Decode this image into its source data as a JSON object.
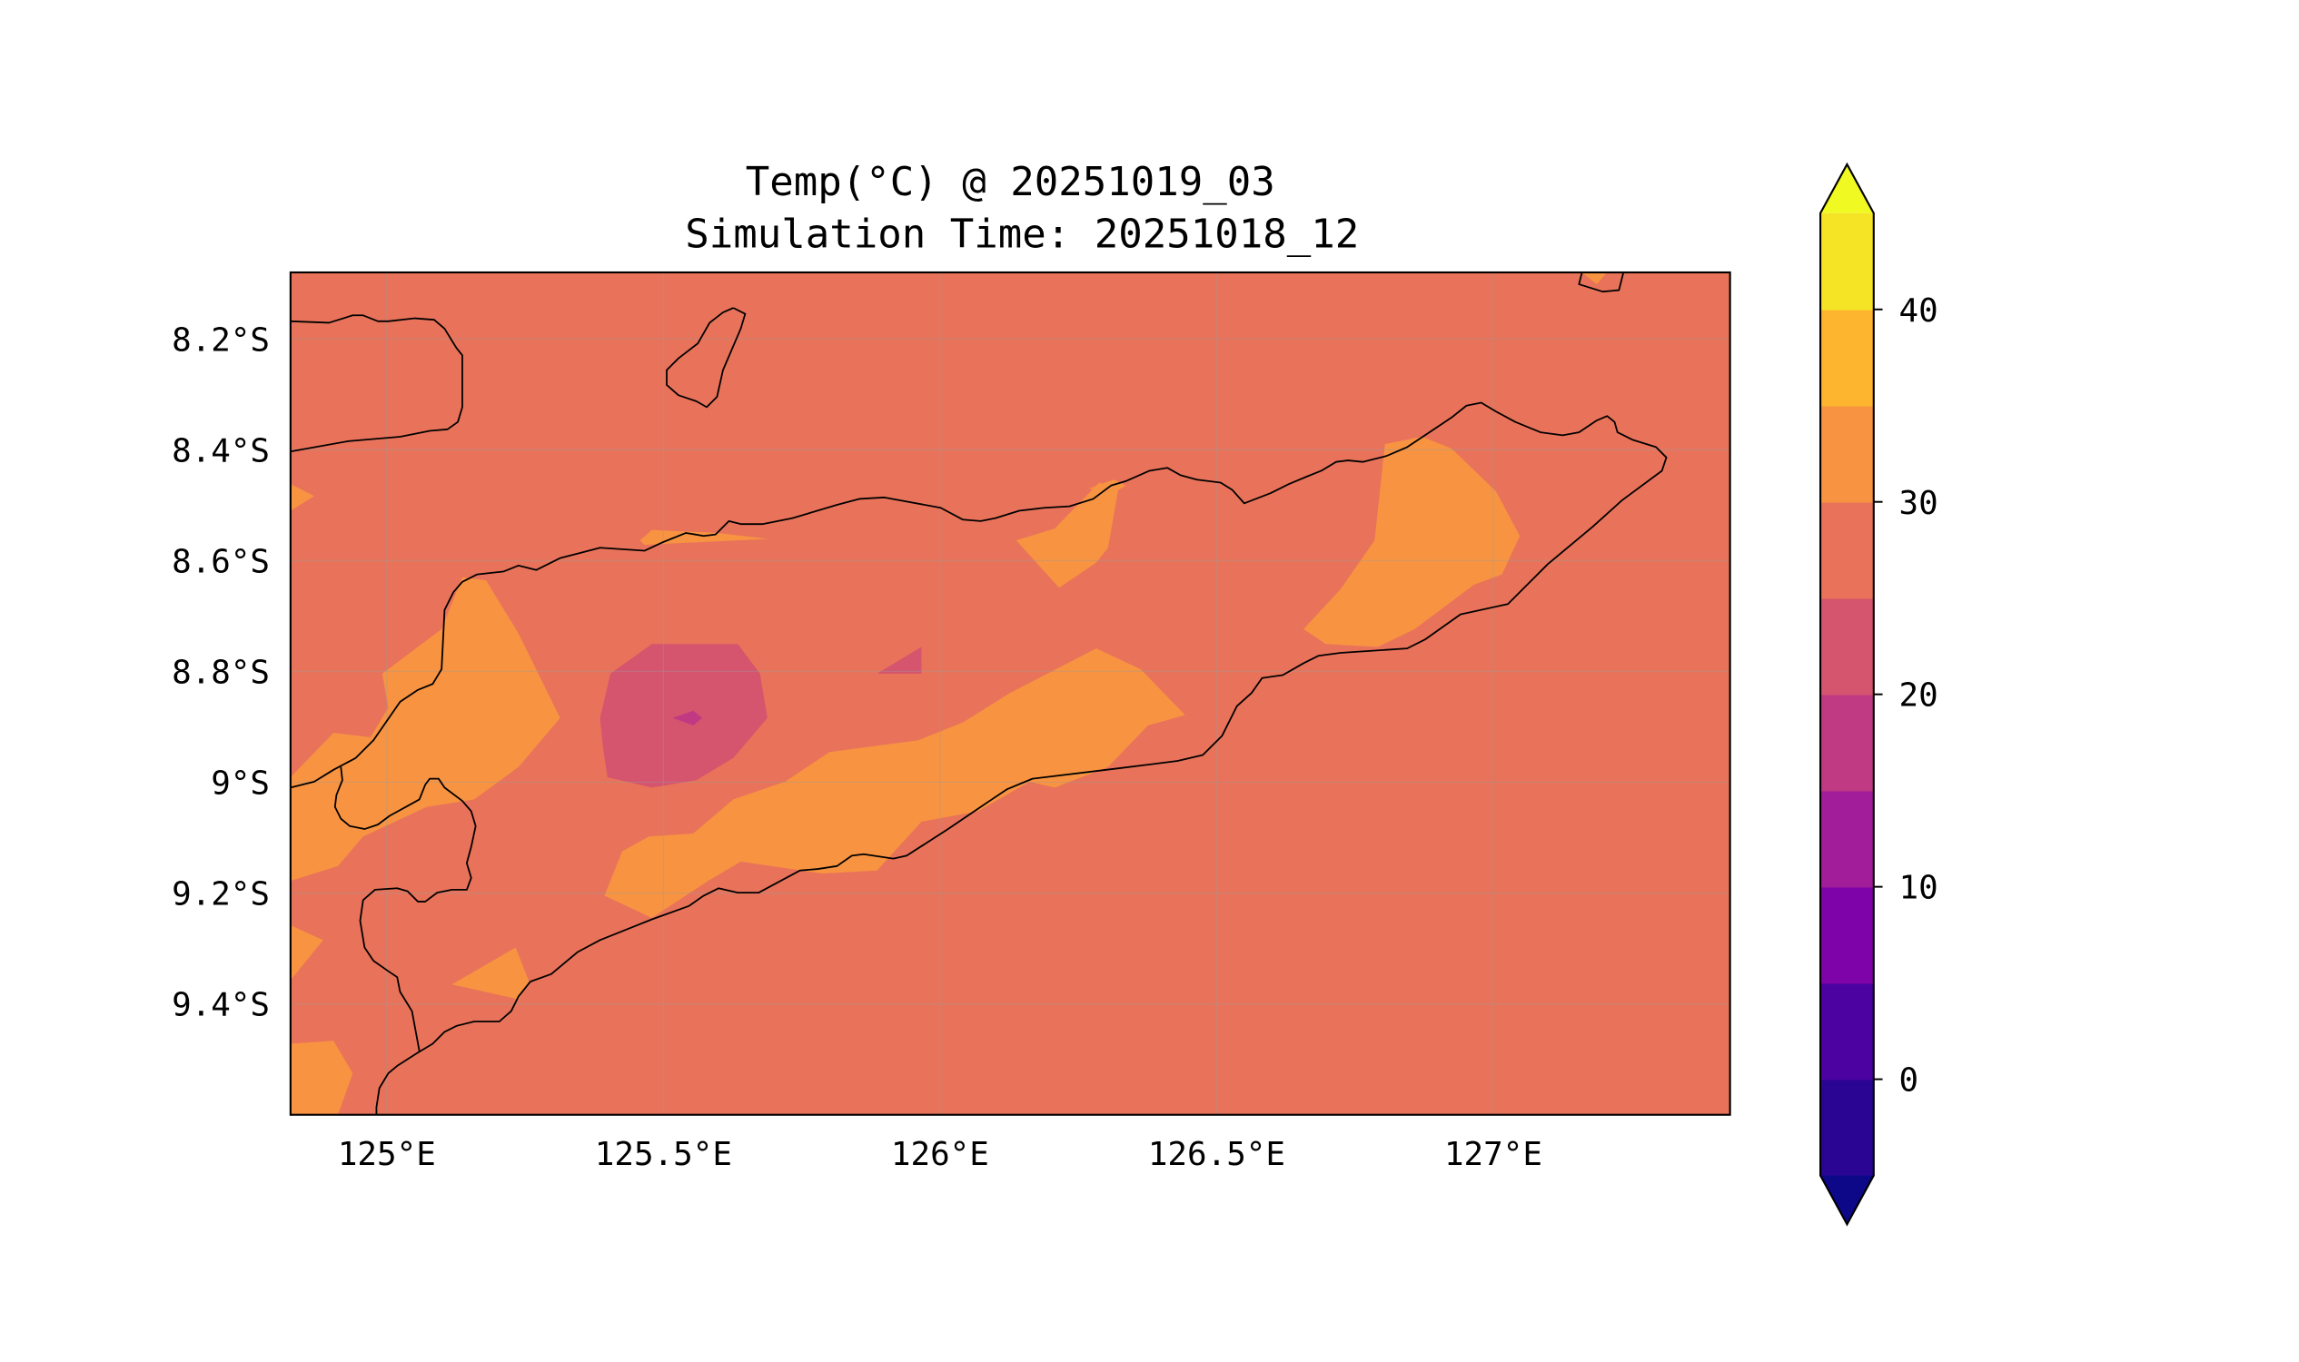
{
  "chart_data": {
    "type": "heatmap",
    "title_line1": "Temp(°C) @ 20251019_03",
    "title_line2": "Simulation Time: 20251018_12",
    "xlabel": "",
    "ylabel": "",
    "xlim": [
      124.826,
      127.428
    ],
    "ylim": [
      -9.6,
      -8.08
    ],
    "grid": true,
    "x_ticks": [
      {
        "value": 125.0,
        "label": "125°E"
      },
      {
        "value": 125.5,
        "label": "125.5°E"
      },
      {
        "value": 126.0,
        "label": "126°E"
      },
      {
        "value": 126.5,
        "label": "126.5°E"
      },
      {
        "value": 127.0,
        "label": "127°E"
      }
    ],
    "y_ticks": [
      {
        "value": -8.2,
        "label": "8.2°S"
      },
      {
        "value": -8.4,
        "label": "8.4°S"
      },
      {
        "value": -8.6,
        "label": "8.6°S"
      },
      {
        "value": -8.8,
        "label": "8.8°S"
      },
      {
        "value": -9.0,
        "label": "9°S"
      },
      {
        "value": -9.2,
        "label": "9.2°S"
      },
      {
        "value": -9.4,
        "label": "9.4°S"
      }
    ],
    "field_summary": {
      "background_range": [
        25,
        30
      ],
      "warm_bands_range": [
        30,
        35
      ],
      "cool_spot_range": [
        20,
        25
      ],
      "coldest_spot_range": [
        15,
        20
      ]
    },
    "colorbar": {
      "levels": [
        -5,
        0,
        5,
        10,
        15,
        20,
        25,
        30,
        35,
        40,
        45
      ],
      "colors": [
        "#2a0593",
        "#4c02a1",
        "#7e03a8",
        "#a21d9a",
        "#c03a83",
        "#d5546e",
        "#e8735a",
        "#f89441",
        "#fdb42f",
        "#f5e426"
      ],
      "extend_low_color": "#0d0887",
      "extend_high_color": "#f0f921",
      "ticks": [
        {
          "value": 0,
          "label": "0"
        },
        {
          "value": 10,
          "label": "10"
        },
        {
          "value": 20,
          "label": "20"
        },
        {
          "value": 30,
          "label": "30"
        },
        {
          "value": 40,
          "label": "40"
        }
      ]
    }
  }
}
